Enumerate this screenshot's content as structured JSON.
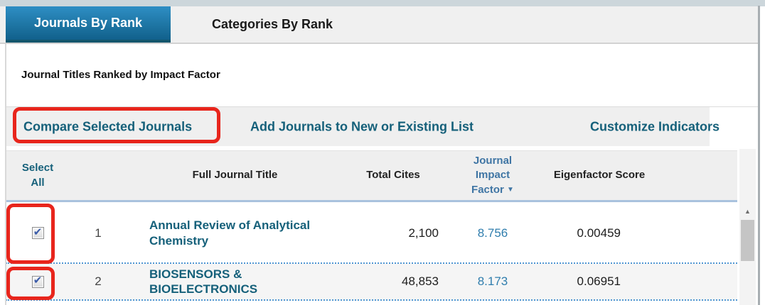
{
  "tabs": {
    "journals_by_rank": "Journals By Rank",
    "categories_by_rank": "Categories By Rank"
  },
  "subtitle": "Journal Titles Ranked by Impact Factor",
  "actions": {
    "compare": "Compare Selected Journals",
    "add_to_list": "Add Journals to New or Existing List",
    "customize": "Customize Indicators"
  },
  "table": {
    "headers": {
      "select_all": "Select All",
      "full_journal_title": "Full Journal Title",
      "total_cites": "Total Cites",
      "journal_impact_factor": "Journal Impact Factor",
      "eigenfactor_score": "Eigenfactor Score"
    },
    "sort_arrow": "▼",
    "rows": [
      {
        "rank": "1",
        "title": "Annual Review of Analytical Chemistry",
        "total_cites": "2,100",
        "impact_factor": "8.756",
        "eigenfactor": "0.00459",
        "checked": true
      },
      {
        "rank": "2",
        "title": "BIOSENSORS & BIOELECTRONICS",
        "total_cites": "48,853",
        "impact_factor": "8.173",
        "eigenfactor": "0.06951",
        "checked": true
      }
    ]
  },
  "icons": {
    "checkbox_check": "✔",
    "scroll_up_arrow": "▲",
    "sort_desc": "▼"
  },
  "colors": {
    "teal_link": "#15607a",
    "jif_header_blue": "#3f75a4",
    "value_link_blue": "#2f7dad",
    "annotation_red": "#e8251c",
    "active_tab_top": "#2e8ec4",
    "active_tab_bottom": "#11618c",
    "header_underline": "#a9c2de",
    "dotted_row_border": "#4f96d2"
  }
}
